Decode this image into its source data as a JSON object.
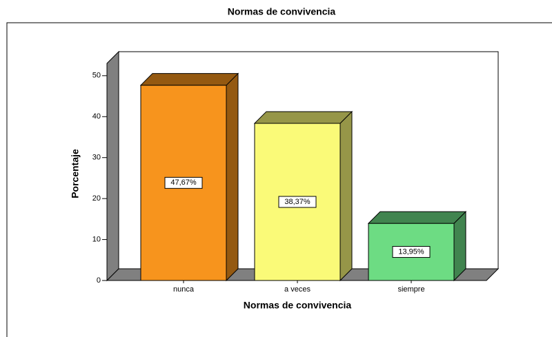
{
  "chart_data": {
    "type": "bar3d",
    "title": "Normas de convivencia",
    "x_label": "Normas de convivencia",
    "y_label": "Porcentaje",
    "categories": [
      "nunca",
      "a veces",
      "siempre"
    ],
    "values": [
      47.67,
      38.37,
      13.95
    ],
    "value_labels": [
      "47,67%",
      "38,37%",
      "13,95%"
    ],
    "colors": [
      "#f7941d",
      "#fafa78",
      "#6ddc83"
    ],
    "ylim": [
      0,
      53
    ],
    "yticks": [
      0,
      10,
      20,
      30,
      40,
      50
    ]
  }
}
